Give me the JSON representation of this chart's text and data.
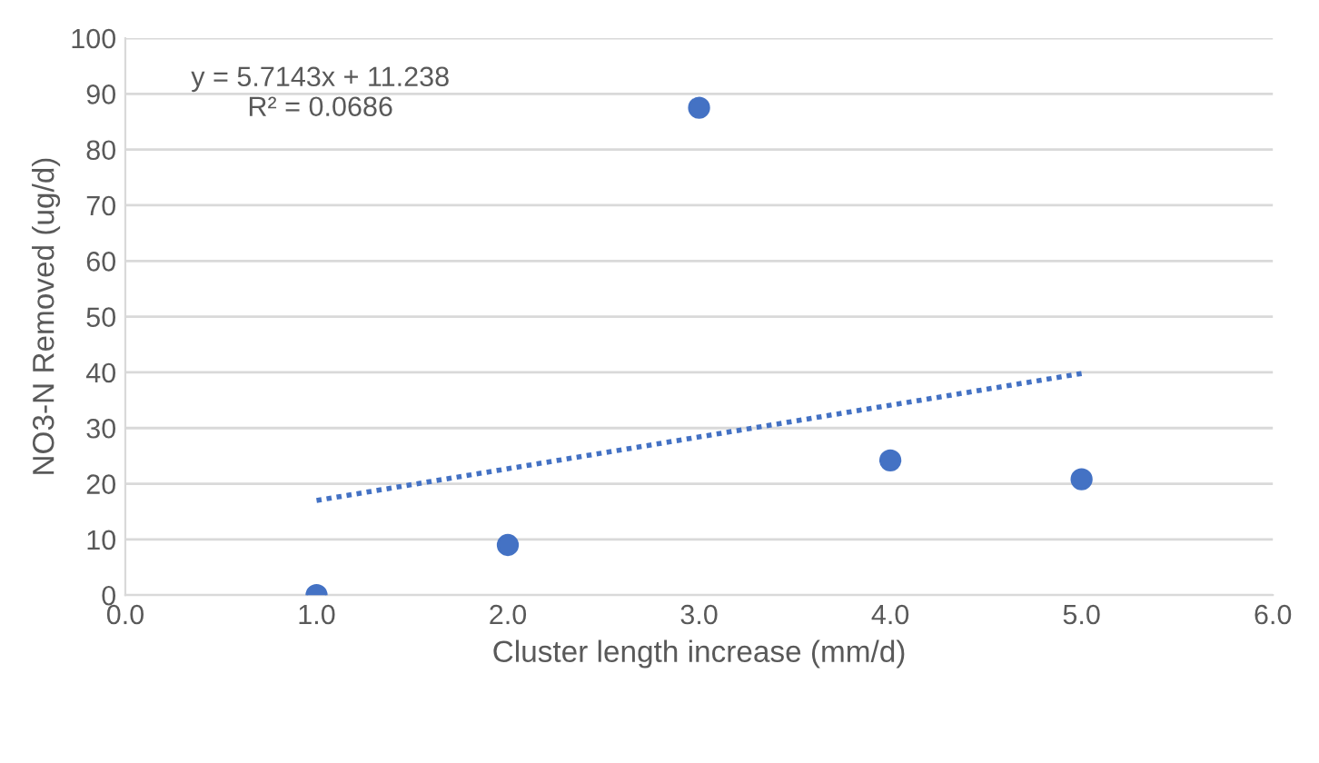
{
  "chart_data": {
    "type": "scatter",
    "xlabel": "Cluster length increase (mm/d)",
    "ylabel": "NO3-N Removed (ug/d)",
    "x": [
      1.0,
      2.0,
      3.0,
      4.0,
      5.0
    ],
    "series": [
      {
        "color": "#4472c4",
        "values": [
          0,
          9,
          87.5,
          24.2,
          20.8
        ],
        "marker": "circle"
      },
      {
        "type": "line",
        "color": "#4472c4",
        "x": [
          1.0,
          5.0
        ],
        "values": [
          17.0,
          39.8
        ],
        "line_style": "dotted",
        "marker": "none"
      }
    ],
    "annotations": [
      "y = 5.7143x + 11.238\nR² = 0.0686"
    ],
    "xlim": [
      0,
      6
    ],
    "ylim": [
      0,
      100
    ],
    "xticks": [
      {
        "value": 0,
        "label": "0.0"
      },
      {
        "value": 1,
        "label": "1.0"
      },
      {
        "value": 2,
        "label": "2.0"
      },
      {
        "value": 3,
        "label": "3.0"
      },
      {
        "value": 4,
        "label": "4.0"
      },
      {
        "value": 5,
        "label": "5.0"
      },
      {
        "value": 6,
        "label": "6.0"
      }
    ],
    "yticks": [
      0,
      10,
      20,
      30,
      40,
      50,
      60,
      70,
      80,
      90,
      100
    ],
    "grid": "y",
    "legend": false
  }
}
